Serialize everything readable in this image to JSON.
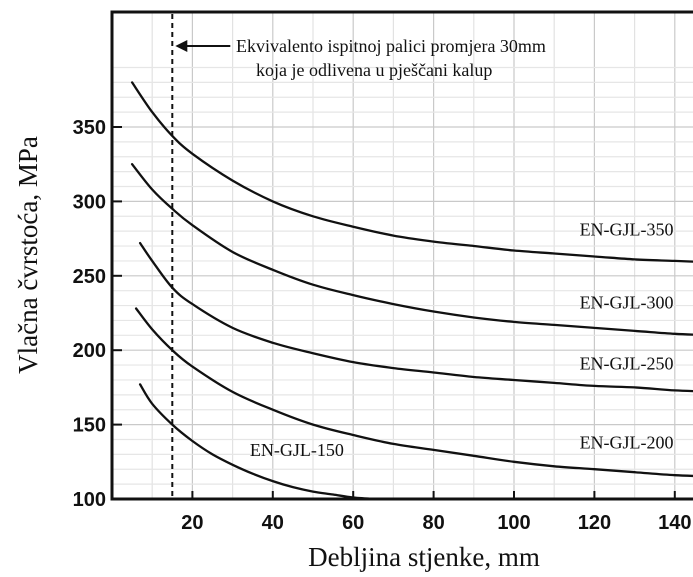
{
  "chart_data": {
    "type": "line",
    "title": "",
    "xlabel": "Debljina stjenke, mm",
    "ylabel": "Vlačna čvrstoća, MPa",
    "xlim": [
      0,
      150
    ],
    "ylim": [
      100,
      400
    ],
    "x_ticks": [
      20,
      40,
      60,
      80,
      100,
      120,
      140
    ],
    "y_ticks": [
      100,
      150,
      200,
      250,
      300,
      350
    ],
    "x_tick_labels": [
      "20",
      "40",
      "60",
      "80",
      "100",
      "120",
      "140"
    ],
    "y_tick_labels": [
      "100",
      "150",
      "200",
      "250",
      "300",
      "350"
    ],
    "grid": true,
    "series": [
      {
        "name": "EN-GJL-350",
        "x": [
          5,
          10,
          15,
          20,
          30,
          40,
          50,
          60,
          70,
          80,
          90,
          100,
          110,
          120,
          130,
          140,
          150
        ],
        "y": [
          380,
          360,
          344,
          332,
          314,
          300,
          290,
          283,
          277,
          273,
          270,
          267,
          265,
          263,
          261,
          260,
          259
        ]
      },
      {
        "name": "EN-GJL-300",
        "x": [
          5,
          10,
          15,
          20,
          30,
          40,
          50,
          60,
          70,
          80,
          90,
          100,
          110,
          120,
          130,
          140,
          150
        ],
        "y": [
          325,
          308,
          295,
          284,
          266,
          254,
          244,
          237,
          231,
          226,
          222,
          219,
          217,
          215,
          213,
          211,
          210
        ]
      },
      {
        "name": "EN-GJL-250",
        "x": [
          7,
          10,
          15,
          20,
          30,
          40,
          50,
          60,
          70,
          80,
          90,
          100,
          110,
          120,
          130,
          140,
          150
        ],
        "y": [
          272,
          260,
          242,
          231,
          215,
          205,
          198,
          192,
          188,
          185,
          182,
          180,
          178,
          176,
          175,
          173,
          172
        ]
      },
      {
        "name": "EN-GJL-200",
        "x": [
          6,
          10,
          15,
          20,
          30,
          40,
          50,
          60,
          70,
          80,
          90,
          100,
          110,
          120,
          130,
          140,
          150
        ],
        "y": [
          228,
          214,
          200,
          189,
          172,
          160,
          150,
          143,
          137,
          133,
          129,
          125,
          122,
          120,
          118,
          116,
          115
        ]
      },
      {
        "name": "EN-GJL-150",
        "x": [
          7,
          10,
          15,
          20,
          25,
          30,
          35,
          40,
          45,
          50,
          55,
          60,
          66
        ],
        "y": [
          177,
          164,
          150,
          139,
          130,
          123,
          117,
          112,
          108,
          105,
          103,
          101,
          100
        ]
      }
    ],
    "annotation": {
      "x": 15,
      "line1": "Ekvivalento ispitnoj palici promjera 30mm",
      "line2": "koja je odlivena u pješčani kalup"
    }
  }
}
